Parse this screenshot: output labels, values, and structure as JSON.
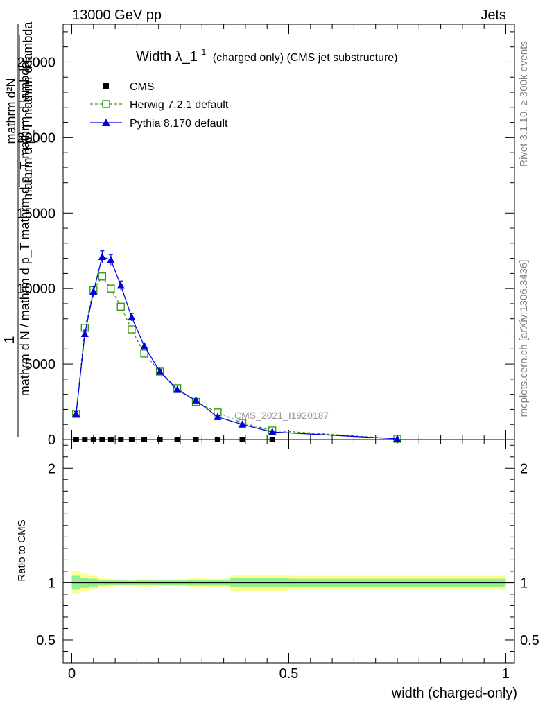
{
  "header": {
    "left": "13000 GeV pp",
    "right": "Jets"
  },
  "side": {
    "rivet": "Rivet 3.1.10, ≥ 300k events",
    "mcplots": "mcplots.cern.ch [arXiv:1306.3436]"
  },
  "colors": {
    "data": "#000000",
    "herwig": "#3a9a17",
    "pythia": "#0000e0",
    "band_inner": "#8ff28f",
    "band_outer": "#ffff90",
    "watermark": "#999999"
  },
  "chart_data": [
    {
      "type": "line",
      "title": "Width λ_1¹ (charged only) (CMS jet substructure)",
      "title_main": "Width λ_1",
      "title_sup": "1",
      "title_suffix": "(charged only) (CMS jet substructure)",
      "ylabel_numerator": "1",
      "ylabel_denominator": "mathrm d N / mathrm d p_T mathrm d p_T mathrm d lambda",
      "ylabel_line1": "mathrm d²N",
      "ylabel_line2": "mathrm d p_T mathrm d lambda",
      "watermark": "CMS_2021_I1920187",
      "xlim": [
        -0.02,
        1.02
      ],
      "ylim": [
        0,
        27500
      ],
      "yticks": [
        0,
        5000,
        10000,
        15000,
        20000,
        25000
      ],
      "ytick_labels": [
        "0",
        "5000",
        "10000",
        "15000",
        "20000",
        "25000"
      ],
      "legend_position": "top-left",
      "series": [
        {
          "name": "CMS",
          "marker": "square-filled",
          "x": [
            0.01,
            0.03,
            0.05,
            0.07,
            0.09,
            0.113,
            0.138,
            0.167,
            0.203,
            0.243,
            0.286,
            0.336,
            0.393,
            0.462,
            0.75
          ],
          "y": [
            0,
            0,
            0,
            0,
            0,
            0,
            0,
            0,
            0,
            0,
            0,
            0,
            0,
            0,
            0
          ]
        },
        {
          "name": "Herwig 7.2.1 default",
          "marker": "square-open",
          "x": [
            0.01,
            0.03,
            0.05,
            0.07,
            0.09,
            0.113,
            0.138,
            0.167,
            0.203,
            0.243,
            0.286,
            0.336,
            0.393,
            0.462,
            0.75
          ],
          "y": [
            1700,
            7400,
            9900,
            10800,
            10000,
            8800,
            7300,
            5700,
            4500,
            3400,
            2500,
            1800,
            1100,
            600,
            50
          ]
        },
        {
          "name": "Pythia 8.170 default",
          "marker": "triangle-filled",
          "x": [
            0.01,
            0.03,
            0.05,
            0.07,
            0.09,
            0.113,
            0.138,
            0.167,
            0.203,
            0.243,
            0.286,
            0.336,
            0.393,
            0.462,
            0.75
          ],
          "y": [
            1700,
            7000,
            9800,
            12100,
            11900,
            10200,
            8100,
            6200,
            4500,
            3300,
            2600,
            1500,
            1000,
            500,
            50
          ],
          "err": [
            150,
            250,
            350,
            400,
            350,
            300,
            250,
            200,
            150,
            120,
            100,
            80,
            60,
            40,
            10
          ]
        }
      ]
    },
    {
      "type": "line",
      "ylabel": "Ratio to CMS",
      "xlabel": "width (charged-only)",
      "xlim": [
        -0.02,
        1.02
      ],
      "ylim": [
        0.3,
        2.25
      ],
      "xticks": [
        0,
        0.5,
        1
      ],
      "xtick_labels": [
        "0",
        "0.5",
        "1"
      ],
      "yticks": [
        0.5,
        1,
        2
      ],
      "ytick_labels": [
        "0.5",
        "1",
        "2"
      ],
      "reference": 1,
      "band_edges": [
        0,
        0.02,
        0.04,
        0.06,
        0.08,
        0.1,
        0.125,
        0.15,
        0.185,
        0.22,
        0.265,
        0.305,
        0.365,
        0.42,
        0.5,
        1.0
      ],
      "band_inner": [
        0.06,
        0.045,
        0.035,
        0.025,
        0.02,
        0.02,
        0.018,
        0.02,
        0.02,
        0.02,
        0.025,
        0.025,
        0.04,
        0.04,
        0.035
      ],
      "band_outer": [
        0.1,
        0.08,
        0.06,
        0.04,
        0.035,
        0.03,
        0.03,
        0.035,
        0.03,
        0.03,
        0.04,
        0.035,
        0.07,
        0.07,
        0.06
      ]
    }
  ]
}
